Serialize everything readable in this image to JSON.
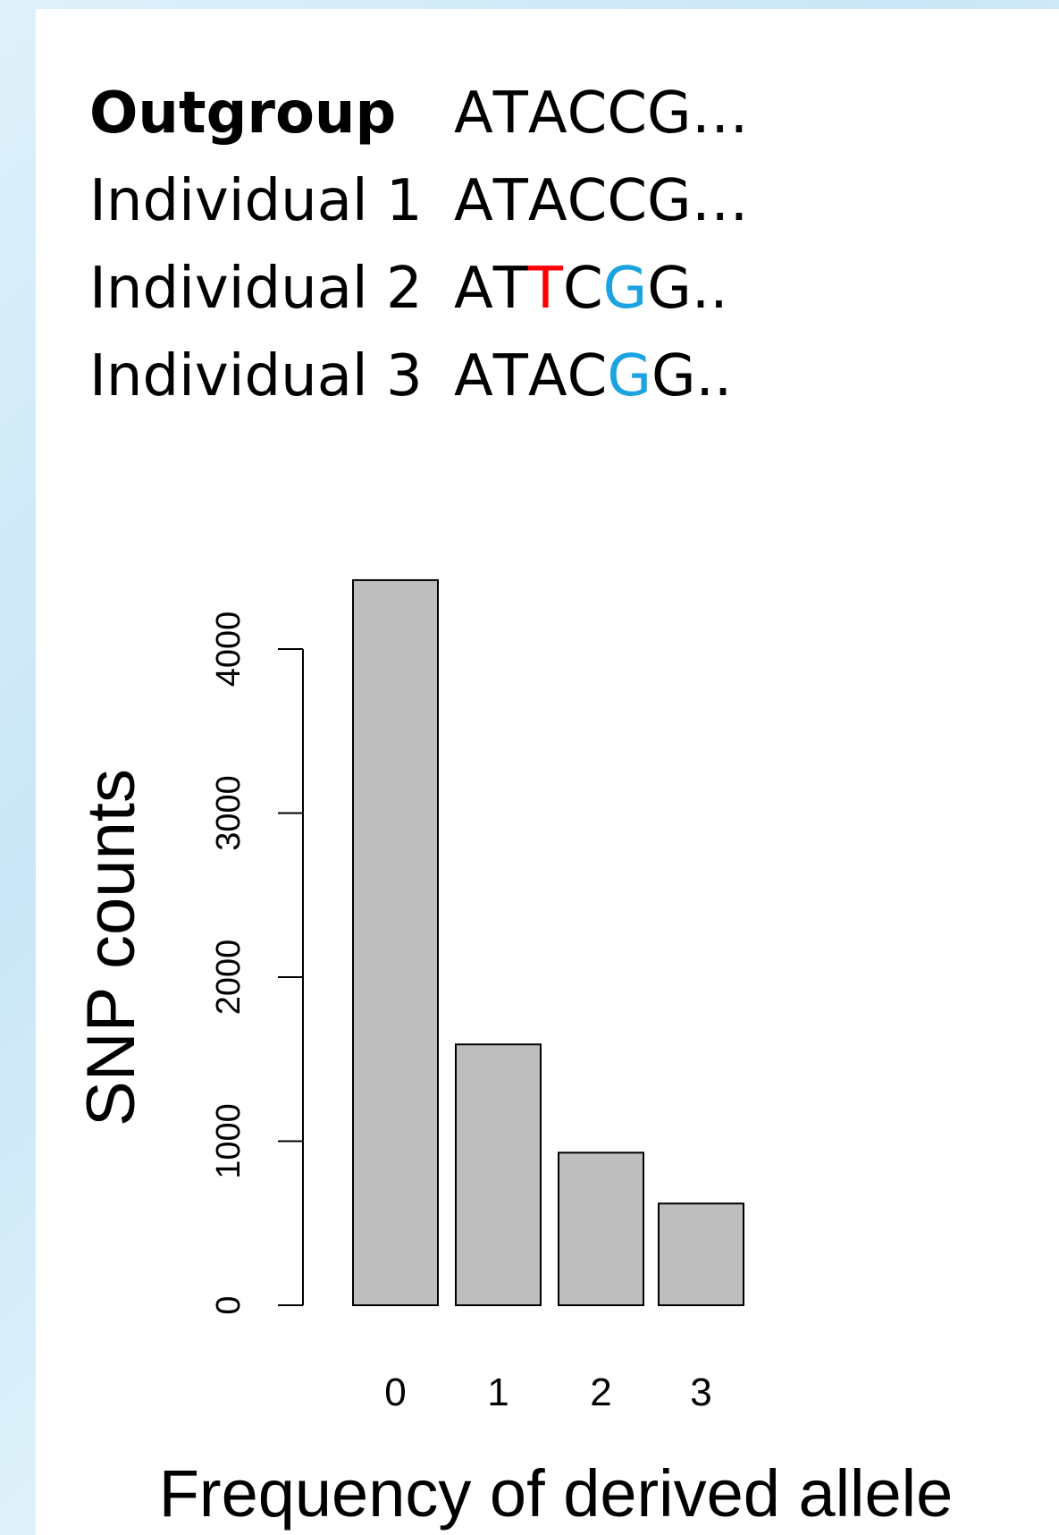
{
  "sequences": [
    {
      "label": "Outgroup",
      "bold": true,
      "bases": [
        {
          "ch": "A",
          "color": "#000000"
        },
        {
          "ch": "T",
          "color": "#000000"
        },
        {
          "ch": "A",
          "color": "#000000"
        },
        {
          "ch": "C",
          "color": "#000000"
        },
        {
          "ch": "C",
          "color": "#000000"
        },
        {
          "ch": "G",
          "color": "#000000"
        },
        {
          "ch": "…",
          "color": "#000000"
        }
      ]
    },
    {
      "label": "Individual 1",
      "bold": false,
      "bases": [
        {
          "ch": "A",
          "color": "#000000"
        },
        {
          "ch": "T",
          "color": "#000000"
        },
        {
          "ch": "A",
          "color": "#000000"
        },
        {
          "ch": "C",
          "color": "#000000"
        },
        {
          "ch": "C",
          "color": "#000000"
        },
        {
          "ch": "G",
          "color": "#000000"
        },
        {
          "ch": "…",
          "color": "#000000"
        }
      ]
    },
    {
      "label": "Individual 2",
      "bold": false,
      "bases": [
        {
          "ch": "A",
          "color": "#000000"
        },
        {
          "ch": "T",
          "color": "#000000"
        },
        {
          "ch": "T",
          "color": "#ff0000"
        },
        {
          "ch": "C",
          "color": "#000000"
        },
        {
          "ch": "G",
          "color": "#1aa3e0"
        },
        {
          "ch": "G",
          "color": "#000000"
        },
        {
          "ch": "..",
          "color": "#000000"
        }
      ]
    },
    {
      "label": "Individual 3",
      "bold": false,
      "bases": [
        {
          "ch": "A",
          "color": "#000000"
        },
        {
          "ch": "T",
          "color": "#000000"
        },
        {
          "ch": "A",
          "color": "#000000"
        },
        {
          "ch": "C",
          "color": "#000000"
        },
        {
          "ch": "G",
          "color": "#1aa3e0"
        },
        {
          "ch": "G",
          "color": "#000000"
        },
        {
          "ch": "..",
          "color": "#000000"
        }
      ]
    }
  ],
  "chart_data": {
    "type": "bar",
    "categories": [
      "0",
      "1",
      "2",
      "3"
    ],
    "values": [
      4420,
      1590,
      930,
      620
    ],
    "xlabel": "Frequency of derived allele",
    "ylabel": "SNP counts",
    "ylim": [
      0,
      4000
    ],
    "yticks": [
      "0",
      "1000",
      "2000",
      "3000",
      "4000"
    ],
    "grid": false,
    "bar_color": "#bebebe"
  }
}
